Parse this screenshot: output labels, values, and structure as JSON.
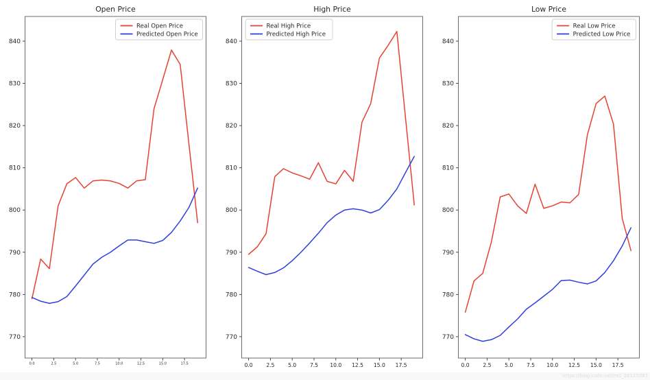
{
  "page": {
    "watermark": "https://blog.csdn.net/m0_38125087",
    "background": "#ffffff"
  },
  "colors": {
    "real_line": "#e8402f",
    "predicted_line": "#2e3de0",
    "spine": "#6b6b6b",
    "tick_label": "#262626",
    "title": "#262626",
    "legend_border": "#cccccc",
    "legend_bg": "#ffffff",
    "watermark_text": "#dcdcdc",
    "watermark_bg": "#f8f8f8"
  },
  "chart_data": [
    {
      "type": "line",
      "title": "Open Price",
      "xlabel": "",
      "ylabel": "",
      "grid": false,
      "legend_position": "top-right",
      "x": [
        0,
        1,
        2,
        3,
        4,
        5,
        6,
        7,
        8,
        9,
        10,
        11,
        12,
        13,
        14,
        15,
        16,
        17,
        18,
        19
      ],
      "x_tick_values": [
        0,
        2.5,
        5,
        7.5,
        10,
        12.5,
        15,
        17.5
      ],
      "x_tick_labels": [
        "0.0",
        "2.5",
        "5.0",
        "7.5",
        "10.0",
        "12.5",
        "15.0",
        "17.5"
      ],
      "y_tick_values": [
        770,
        780,
        790,
        800,
        810,
        820,
        830,
        840
      ],
      "ylim": [
        764.8,
        845.9
      ],
      "xlim": [
        -0.95,
        19.95
      ],
      "series": [
        {
          "name": "Real Open Price",
          "color_key": "real_line",
          "values": [
            779.0,
            788.4,
            786.1,
            801.0,
            806.2,
            807.7,
            805.2,
            806.9,
            807.1,
            806.9,
            806.3,
            805.2,
            806.9,
            807.2,
            824.0,
            830.9,
            837.9,
            834.5,
            815.7,
            797.0
          ]
        },
        {
          "name": "Predicted Open Price",
          "color_key": "predicted_line",
          "values": [
            779.3,
            778.4,
            777.9,
            778.3,
            779.5,
            782.0,
            784.6,
            787.2,
            788.8,
            790.0,
            791.5,
            792.9,
            792.9,
            792.5,
            792.1,
            792.8,
            794.7,
            797.4,
            800.6,
            805.2
          ]
        }
      ]
    },
    {
      "type": "line",
      "title": "High Price",
      "xlabel": "",
      "ylabel": "",
      "grid": false,
      "legend_position": "top-left",
      "x": [
        0,
        1,
        2,
        3,
        4,
        5,
        6,
        7,
        8,
        9,
        10,
        11,
        12,
        13,
        14,
        15,
        16,
        17,
        18,
        19
      ],
      "x_tick_values": [
        0,
        2.5,
        5,
        7.5,
        10,
        12.5,
        15,
        17.5
      ],
      "x_tick_labels": [
        "0.0",
        "2.5",
        "5.0",
        "7.5",
        "10.0",
        "12.5",
        "15.0",
        "17.5"
      ],
      "y_tick_values": [
        770,
        780,
        790,
        800,
        810,
        820,
        830,
        840
      ],
      "ylim": [
        764.8,
        845.9
      ],
      "xlim": [
        -0.95,
        19.95
      ],
      "series": [
        {
          "name": "Real High Price",
          "color_key": "real_line",
          "values": [
            789.5,
            791.3,
            794.4,
            807.9,
            809.8,
            808.8,
            808.1,
            807.3,
            811.2,
            806.8,
            806.2,
            809.4,
            806.8,
            820.8,
            825.2,
            836.0,
            839.0,
            842.3,
            821.7,
            801.2
          ]
        },
        {
          "name": "Predicted High Price",
          "color_key": "predicted_line",
          "values": [
            786.4,
            785.5,
            784.7,
            785.2,
            786.3,
            788.0,
            790.0,
            792.2,
            794.5,
            797.0,
            798.8,
            800.0,
            800.3,
            800.0,
            799.3,
            800.1,
            802.3,
            805.0,
            808.9,
            812.7
          ]
        }
      ]
    },
    {
      "type": "line",
      "title": "Low Price",
      "xlabel": "",
      "ylabel": "",
      "grid": false,
      "legend_position": "top-right",
      "x": [
        0,
        1,
        2,
        3,
        4,
        5,
        6,
        7,
        8,
        9,
        10,
        11,
        12,
        13,
        14,
        15,
        16,
        17,
        18,
        19
      ],
      "x_tick_values": [
        0,
        2.5,
        5,
        7.5,
        10,
        12.5,
        15,
        17.5
      ],
      "x_tick_labels": [
        "0.0",
        "2.5",
        "5.0",
        "7.5",
        "10.0",
        "12.5",
        "15.0",
        "17.5"
      ],
      "y_tick_values": [
        770,
        780,
        790,
        800,
        810,
        820,
        830,
        840
      ],
      "ylim": [
        764.8,
        845.9
      ],
      "xlim": [
        -0.95,
        19.95
      ],
      "series": [
        {
          "name": "Real Low Price",
          "color_key": "real_line",
          "values": [
            775.8,
            783.2,
            785.0,
            792.5,
            803.1,
            803.8,
            801.0,
            799.2,
            806.1,
            800.4,
            801.0,
            801.9,
            801.7,
            803.7,
            817.8,
            825.2,
            827.0,
            820.3,
            798.0,
            790.4
          ]
        },
        {
          "name": "Predicted Low Price",
          "color_key": "predicted_line",
          "values": [
            770.5,
            769.5,
            768.9,
            769.3,
            770.3,
            772.3,
            774.2,
            776.5,
            778.0,
            779.6,
            781.2,
            783.3,
            783.4,
            782.9,
            782.5,
            783.2,
            785.2,
            788.0,
            791.5,
            795.8
          ]
        }
      ]
    }
  ]
}
